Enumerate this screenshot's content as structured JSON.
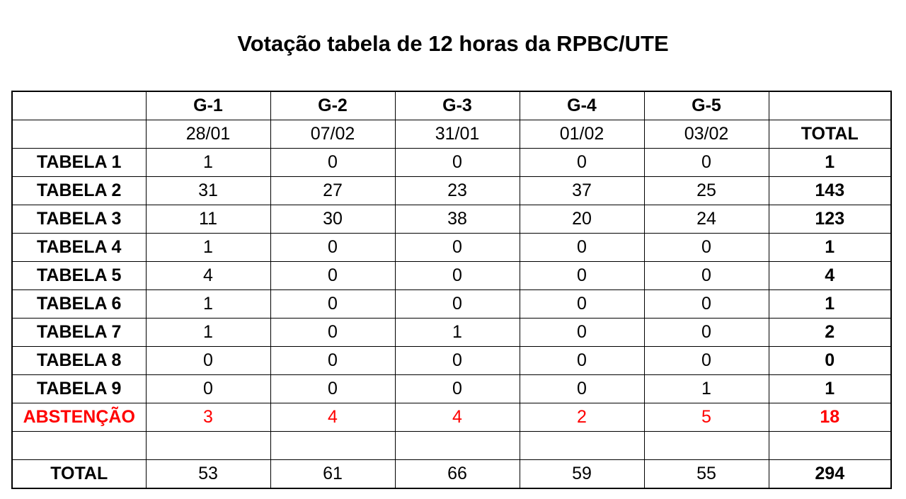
{
  "title": "Votação tabela de 12 horas da RPBC/UTE",
  "colors": {
    "text": "#000000",
    "abstention_red": "#FF0000",
    "border": "#000000",
    "background": "#FFFFFF"
  },
  "table": {
    "group_header_row": [
      "",
      "G-1",
      "G-2",
      "G-3",
      "G-4",
      "G-5",
      ""
    ],
    "date_header_row": [
      "",
      "28/01",
      "07/02",
      "31/01",
      "01/02",
      "03/02",
      "TOTAL"
    ],
    "rows": [
      {
        "label": "TABELA 1",
        "values": [
          "1",
          "0",
          "0",
          "0",
          "0"
        ],
        "total": "1",
        "red": false
      },
      {
        "label": "TABELA 2",
        "values": [
          "31",
          "27",
          "23",
          "37",
          "25"
        ],
        "total": "143",
        "red": false
      },
      {
        "label": "TABELA 3",
        "values": [
          "11",
          "30",
          "38",
          "20",
          "24"
        ],
        "total": "123",
        "red": false
      },
      {
        "label": "TABELA 4",
        "values": [
          "1",
          "0",
          "0",
          "0",
          "0"
        ],
        "total": "1",
        "red": false
      },
      {
        "label": "TABELA 5",
        "values": [
          "4",
          "0",
          "0",
          "0",
          "0"
        ],
        "total": "4",
        "red": false
      },
      {
        "label": "TABELA 6",
        "values": [
          "1",
          "0",
          "0",
          "0",
          "0"
        ],
        "total": "1",
        "red": false
      },
      {
        "label": "TABELA 7",
        "values": [
          "1",
          "0",
          "1",
          "0",
          "0"
        ],
        "total": "2",
        "red": false
      },
      {
        "label": "TABELA 8",
        "values": [
          "0",
          "0",
          "0",
          "0",
          "0"
        ],
        "total": "0",
        "red": false
      },
      {
        "label": "TABELA 9",
        "values": [
          "0",
          "0",
          "0",
          "0",
          "1"
        ],
        "total": "1",
        "red": false
      },
      {
        "label": "ABSTENÇÃO",
        "values": [
          "3",
          "4",
          "4",
          "2",
          "5"
        ],
        "total": "18",
        "red": true
      },
      {
        "label": "",
        "values": [
          "",
          "",
          "",
          "",
          ""
        ],
        "total": "",
        "red": false
      },
      {
        "label": "TOTAL",
        "values": [
          "53",
          "61",
          "66",
          "59",
          "55"
        ],
        "total": "294",
        "red": false
      }
    ]
  },
  "chart_data": {
    "type": "table",
    "title": "Votação tabela de 12 horas da RPBC/UTE",
    "column_groups": [
      "G-1",
      "G-2",
      "G-3",
      "G-4",
      "G-5"
    ],
    "column_dates": [
      "28/01",
      "07/02",
      "31/01",
      "01/02",
      "03/02"
    ],
    "total_column_label": "TOTAL",
    "rows": [
      {
        "label": "TABELA 1",
        "values": [
          1,
          0,
          0,
          0,
          0
        ],
        "total": 1
      },
      {
        "label": "TABELA 2",
        "values": [
          31,
          27,
          23,
          37,
          25
        ],
        "total": 143
      },
      {
        "label": "TABELA 3",
        "values": [
          11,
          30,
          38,
          20,
          24
        ],
        "total": 123
      },
      {
        "label": "TABELA 4",
        "values": [
          1,
          0,
          0,
          0,
          0
        ],
        "total": 1
      },
      {
        "label": "TABELA 5",
        "values": [
          4,
          0,
          0,
          0,
          0
        ],
        "total": 4
      },
      {
        "label": "TABELA 6",
        "values": [
          1,
          0,
          0,
          0,
          0
        ],
        "total": 1
      },
      {
        "label": "TABELA 7",
        "values": [
          1,
          0,
          1,
          0,
          0
        ],
        "total": 2
      },
      {
        "label": "TABELA 8",
        "values": [
          0,
          0,
          0,
          0,
          0
        ],
        "total": 0
      },
      {
        "label": "TABELA 9",
        "values": [
          0,
          0,
          0,
          0,
          1
        ],
        "total": 1
      },
      {
        "label": "ABSTENÇÃO",
        "values": [
          3,
          4,
          4,
          2,
          5
        ],
        "total": 18
      },
      {
        "label": "TOTAL",
        "values": [
          53,
          61,
          66,
          59,
          55
        ],
        "total": 294
      }
    ]
  }
}
